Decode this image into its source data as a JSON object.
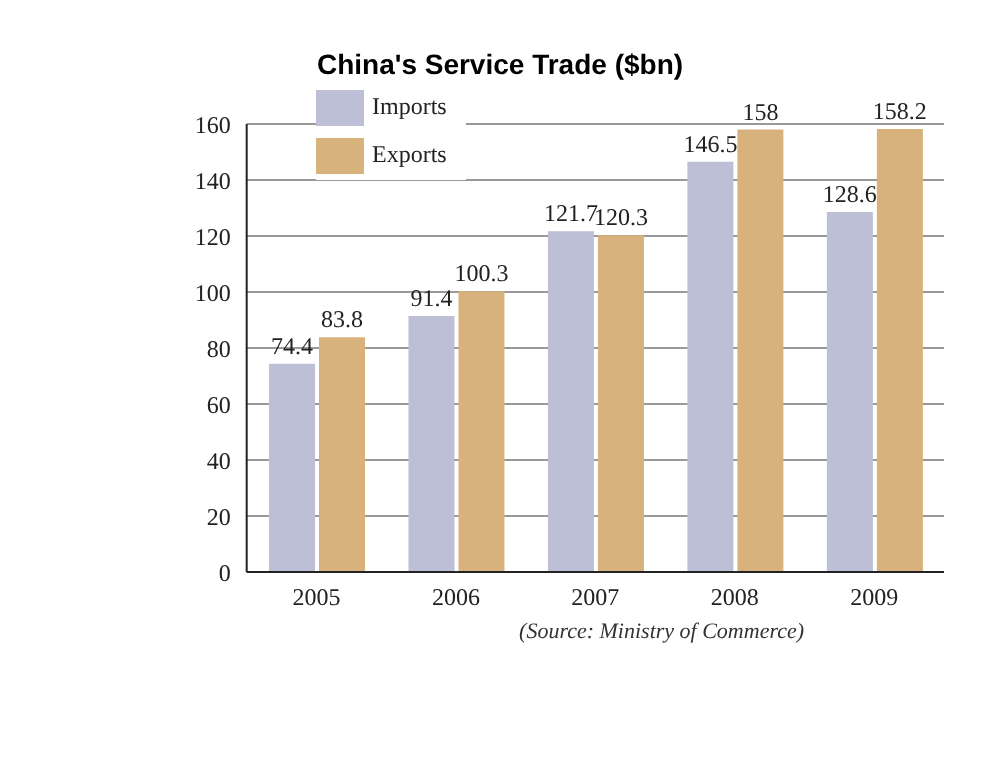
{
  "chart_data": {
    "type": "bar",
    "title": "China's Service Trade ($bn)",
    "categories": [
      "2005",
      "2006",
      "2007",
      "2008",
      "2009"
    ],
    "series": [
      {
        "name": "Imports",
        "color": "#bcbfd6",
        "values": [
          74.4,
          91.4,
          121.7,
          146.5,
          128.6
        ]
      },
      {
        "name": "Exports",
        "color": "#d8b27c",
        "values": [
          83.8,
          100.3,
          120.3,
          158,
          158.2
        ]
      }
    ],
    "ylim": [
      0,
      160
    ],
    "yticks": [
      0,
      20,
      40,
      60,
      80,
      100,
      120,
      140,
      160
    ],
    "grid": "y",
    "legend": "top left",
    "data_labels": true,
    "annotations": [
      "(Source: Ministry of Commerce)"
    ]
  }
}
